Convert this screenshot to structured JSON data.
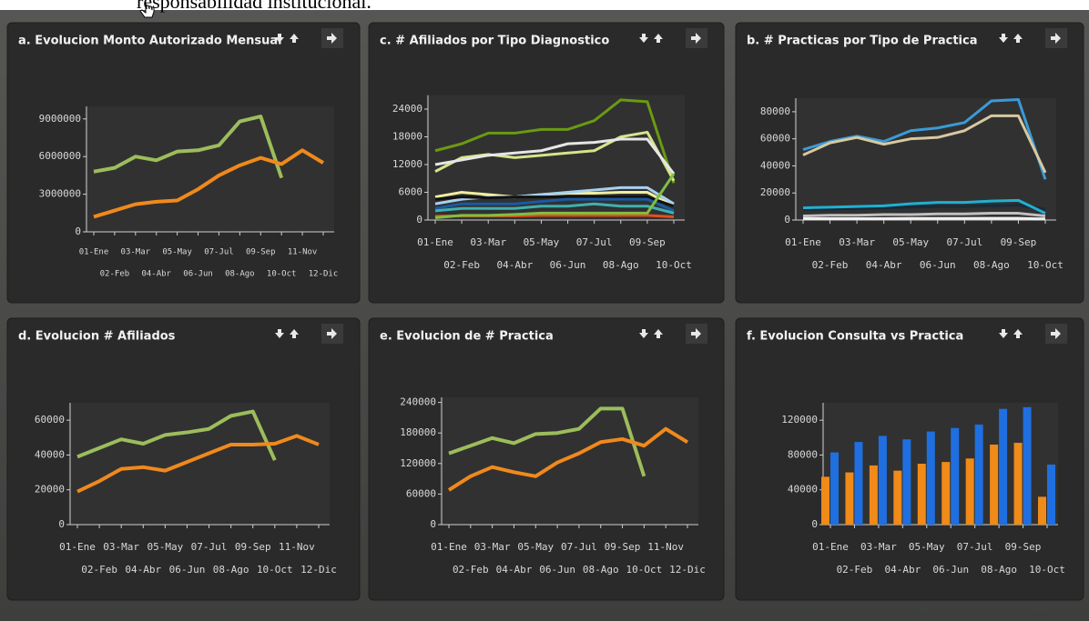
{
  "caption": "responsabilidad institucional.",
  "chart_data": [
    {
      "type": "line",
      "title": "a. Evolucion Monto Autorizado Mensual",
      "categories": [
        "01-Ene",
        "02-Feb",
        "03-Mar",
        "04-Abr",
        "05-May",
        "06-Jun",
        "07-Jul",
        "08-Ago",
        "09-Sep",
        "10-Oct",
        "11-Nov",
        "12-Dic"
      ],
      "series": [
        {
          "color": "#9cbd5c",
          "values": [
            4800000,
            5100000,
            6000000,
            5700000,
            6400000,
            6500000,
            6900000,
            8800000,
            9200000,
            4300000,
            null,
            null
          ]
        },
        {
          "color": "#f0891c",
          "values": [
            1200000,
            1700000,
            2200000,
            2400000,
            2500000,
            3400000,
            4500000,
            5300000,
            5900000,
            5400000,
            6500000,
            5500000
          ]
        }
      ],
      "ylim": [
        0,
        10000000
      ],
      "yticks": [
        0,
        3000000,
        6000000,
        9000000
      ]
    },
    {
      "type": "line",
      "title": "c. # Afiliados por Tipo Diagnostico",
      "categories": [
        "01-Ene",
        "02-Feb",
        "03-Mar",
        "04-Abr",
        "05-May",
        "06-Jun",
        "07-Jul",
        "08-Ago",
        "09-Sep",
        "10-Oct"
      ],
      "series": [
        {
          "color": "#6a9a12",
          "values": [
            15000,
            16500,
            18800,
            18800,
            19600,
            19600,
            21500,
            26000,
            25600,
            8000
          ]
        },
        {
          "color": "#d6e48a",
          "values": [
            10500,
            13500,
            14200,
            13500,
            14000,
            14500,
            15000,
            18000,
            19000,
            8500
          ]
        },
        {
          "color": "#e6e6e6",
          "values": [
            12000,
            13000,
            14000,
            14500,
            15000,
            16500,
            16800,
            17500,
            17500,
            10000
          ]
        },
        {
          "color": "#f0eea0",
          "values": [
            5000,
            6000,
            5500,
            5000,
            5500,
            5800,
            5800,
            6000,
            6000,
            3000
          ]
        },
        {
          "color": "#a8d0f0",
          "values": [
            3500,
            4500,
            5000,
            5000,
            5500,
            6000,
            6500,
            7000,
            7000,
            3500
          ]
        },
        {
          "color": "#111111",
          "values": [
            4500,
            5000,
            4800,
            5000,
            5000,
            5000,
            5000,
            5000,
            5000,
            3000
          ]
        },
        {
          "color": "#1a5aa0",
          "values": [
            2500,
            3500,
            3500,
            3500,
            4000,
            4500,
            4500,
            4500,
            4500,
            2000
          ]
        },
        {
          "color": "#40b0b0",
          "values": [
            2000,
            2500,
            2500,
            2500,
            3000,
            3000,
            3500,
            3000,
            3000,
            1500
          ]
        },
        {
          "color": "#e05020",
          "values": [
            800,
            900,
            900,
            900,
            1000,
            1000,
            1000,
            1000,
            1000,
            700
          ]
        },
        {
          "color": "#80c040",
          "values": [
            500,
            1000,
            1000,
            1200,
            1500,
            1500,
            1500,
            1500,
            1500,
            10000
          ]
        }
      ],
      "ylim": [
        0,
        27000
      ],
      "yticks": [
        0,
        6000,
        12000,
        18000,
        24000
      ]
    },
    {
      "type": "line",
      "title": "b. # Practicas por Tipo de Practica",
      "categories": [
        "01-Ene",
        "02-Feb",
        "03-Mar",
        "04-Abr",
        "05-May",
        "06-Jun",
        "07-Jul",
        "08-Ago",
        "09-Sep",
        "10-Oct"
      ],
      "series": [
        {
          "color": "#3a9ad8",
          "values": [
            52000,
            58000,
            62000,
            58000,
            66000,
            68000,
            72000,
            88000,
            89000,
            30000
          ]
        },
        {
          "color": "#d8c8a0",
          "values": [
            48000,
            57000,
            61000,
            56000,
            60000,
            61000,
            66000,
            77000,
            77000,
            35000
          ]
        },
        {
          "color": "#1a2a38",
          "values": [
            8000,
            8000,
            8500,
            9000,
            9500,
            10000,
            10000,
            10500,
            11000,
            8000
          ]
        },
        {
          "color": "#20b0d0",
          "values": [
            9000,
            9500,
            10000,
            10500,
            12000,
            13000,
            13000,
            14000,
            14500,
            5000
          ]
        },
        {
          "color": "#c0c0c0",
          "values": [
            3000,
            3500,
            3500,
            4000,
            4000,
            4500,
            4500,
            5000,
            5000,
            3000
          ]
        },
        {
          "color": "#f0f0f0",
          "values": [
            1000,
            1000,
            1000,
            1000,
            1200,
            1200,
            1200,
            1300,
            1300,
            800
          ]
        }
      ],
      "ylim": [
        0,
        90000
      ],
      "yticks": [
        0,
        20000,
        40000,
        60000,
        80000
      ]
    },
    {
      "type": "line",
      "title": "d. Evolucion # Afiliados",
      "categories": [
        "01-Ene",
        "02-Feb",
        "03-Mar",
        "04-Abr",
        "05-May",
        "06-Jun",
        "07-Jul",
        "08-Ago",
        "09-Sep",
        "10-Oct",
        "11-Nov",
        "12-Dic"
      ],
      "series": [
        {
          "color": "#9cbd5c",
          "values": [
            39000,
            44000,
            49000,
            46500,
            51500,
            53000,
            55000,
            62500,
            65000,
            37000,
            null,
            null
          ]
        },
        {
          "color": "#f0891c",
          "values": [
            19000,
            25000,
            32000,
            33000,
            31000,
            36000,
            41000,
            46000,
            46000,
            46500,
            51000,
            46000
          ]
        }
      ],
      "ylim": [
        0,
        70000
      ],
      "yticks": [
        0,
        20000,
        40000,
        60000
      ]
    },
    {
      "type": "line",
      "title": "e. Evolucion de # Practica",
      "categories": [
        "01-Ene",
        "02-Feb",
        "03-Mar",
        "04-Abr",
        "05-May",
        "06-Jun",
        "07-Jul",
        "08-Ago",
        "09-Sep",
        "10-Oct",
        "11-Nov",
        "12-Dic"
      ],
      "series": [
        {
          "color": "#9cbd5c",
          "values": [
            140000,
            155000,
            170000,
            160000,
            178000,
            180000,
            188000,
            228000,
            228000,
            95000,
            null,
            null
          ]
        },
        {
          "color": "#f0891c",
          "values": [
            68000,
            95000,
            113000,
            103000,
            95000,
            122000,
            140000,
            162000,
            168000,
            155000,
            188000,
            162000
          ]
        }
      ],
      "ylim": [
        0,
        250000
      ],
      "yticks": [
        0,
        60000,
        120000,
        180000,
        240000
      ]
    },
    {
      "type": "bar",
      "title": "f. Evolucion Consulta vs Practica",
      "categories": [
        "01-Ene",
        "02-Feb",
        "03-Mar",
        "04-Abr",
        "05-May",
        "06-Jun",
        "07-Jul",
        "08-Ago",
        "09-Sep",
        "10-Oct"
      ],
      "series": [
        {
          "color": "#f08a18",
          "values": [
            55000,
            60000,
            68000,
            62000,
            70000,
            72000,
            76000,
            92000,
            94000,
            32000
          ]
        },
        {
          "color": "#1f6fe0",
          "values": [
            83000,
            95000,
            102000,
            98000,
            107000,
            111000,
            115000,
            133000,
            135000,
            69000
          ]
        }
      ],
      "ylim": [
        0,
        140000
      ],
      "yticks": [
        0,
        40000,
        80000,
        120000
      ]
    }
  ]
}
